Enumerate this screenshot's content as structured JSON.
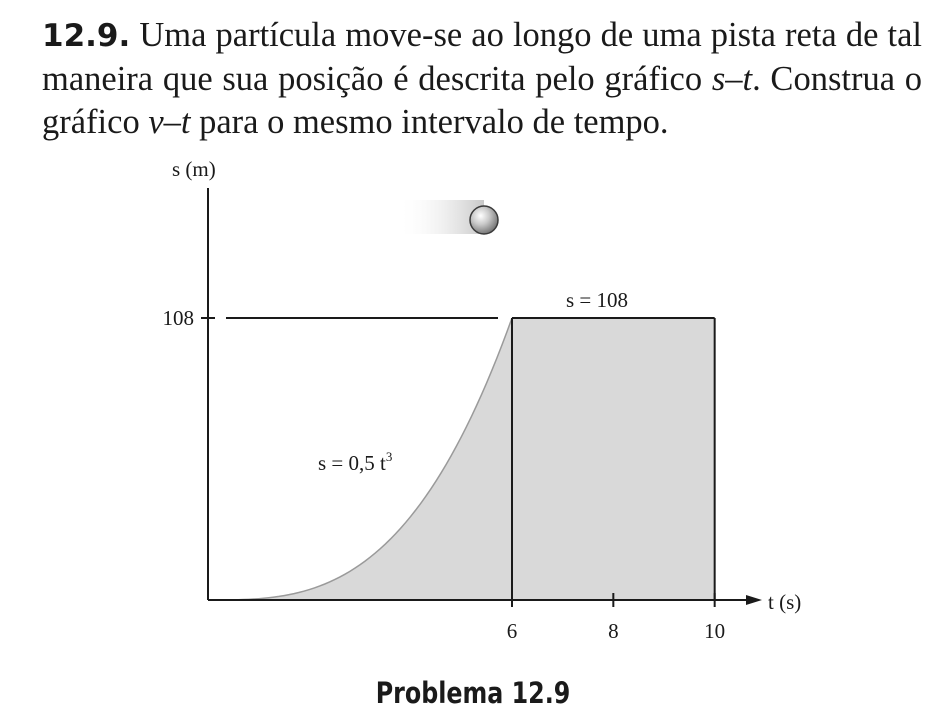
{
  "problem": {
    "number": "12.9.",
    "text_1": " Uma partícula move-se ao longo de uma pista reta de tal maneira que sua posição é descrita pelo gráfico ",
    "graph_st": "s–t",
    "text_2": ". Construa o gráfico ",
    "graph_vt": "v–t",
    "text_3": " para o mesmo intervalo de tempo."
  },
  "figure": {
    "caption": "Problema 12.9",
    "y_axis_label": "s (m)",
    "x_axis_label": "t (s)",
    "curve_label_prefix": "s = 0,5 t",
    "curve_label_exponent": "3",
    "flat_label": "s = 108",
    "colors": {
      "fill": "#d9d9d9",
      "ink": "#1a1a1a"
    }
  },
  "chart_data": {
    "type": "area",
    "xlabel": "t (s)",
    "ylabel": "s (m)",
    "xlim": [
      0,
      10
    ],
    "ylim": [
      0,
      108
    ],
    "x_ticks": [
      6,
      8,
      10
    ],
    "y_ticks": [
      108
    ],
    "series": [
      {
        "name": "s = 0,5 t3",
        "segment": "cubic",
        "t": [
          0,
          1,
          2,
          3,
          4,
          5,
          6
        ],
        "s": [
          0,
          0.5,
          4,
          13.5,
          32,
          62.5,
          108
        ]
      },
      {
        "name": "s = 108",
        "segment": "constant",
        "t": [
          6,
          10
        ],
        "s": [
          108,
          108
        ]
      }
    ],
    "grid": false,
    "legend": "none"
  }
}
